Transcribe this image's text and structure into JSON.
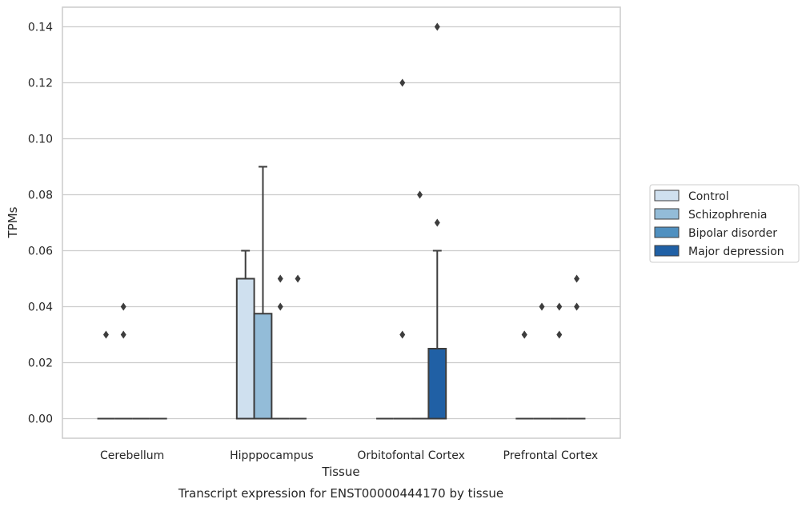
{
  "chart_data": {
    "type": "box",
    "xlabel": "Tissue",
    "ylabel": "TPMs",
    "caption": "Transcript expression for ENST00000444170 by tissue",
    "ylim": [
      -0.007,
      0.147
    ],
    "yticks": [
      "0.00",
      "0.02",
      "0.04",
      "0.06",
      "0.08",
      "0.10",
      "0.12",
      "0.14"
    ],
    "grid": "horizontal",
    "legend_position": "right",
    "categories": [
      "Cerebellum",
      "Hipppocampus",
      "Orbitofontal Cortex",
      "Prefrontal Cortex"
    ],
    "series": [
      {
        "name": "Control",
        "color": "#cfe0ef",
        "boxes": [
          {
            "q1": 0,
            "median": 0,
            "q3": 0,
            "whisker_low": 0,
            "whisker_high": 0,
            "outliers": [
              0.03
            ]
          },
          {
            "q1": 0,
            "median": 0,
            "q3": 0.05,
            "whisker_low": 0,
            "whisker_high": 0.06,
            "outliers": []
          },
          {
            "q1": 0,
            "median": 0,
            "q3": 0,
            "whisker_low": 0,
            "whisker_high": 0,
            "outliers": []
          },
          {
            "q1": 0,
            "median": 0,
            "q3": 0,
            "whisker_low": 0,
            "whisker_high": 0,
            "outliers": [
              0.03,
              0.03
            ]
          }
        ]
      },
      {
        "name": "Schizophrenia",
        "color": "#93bcd8",
        "boxes": [
          {
            "q1": 0,
            "median": 0,
            "q3": 0,
            "whisker_low": 0,
            "whisker_high": 0,
            "outliers": [
              0.03,
              0.04
            ]
          },
          {
            "q1": 0,
            "median": 0,
            "q3": 0.0375,
            "whisker_low": 0,
            "whisker_high": 0.09,
            "outliers": []
          },
          {
            "q1": 0,
            "median": 0,
            "q3": 0,
            "whisker_low": 0,
            "whisker_high": 0,
            "outliers": [
              0.03,
              0.12
            ]
          },
          {
            "q1": 0,
            "median": 0,
            "q3": 0,
            "whisker_low": 0,
            "whisker_high": 0,
            "outliers": [
              0.04
            ]
          }
        ]
      },
      {
        "name": "Bipolar disorder",
        "color": "#4f90c0",
        "boxes": [
          {
            "q1": 0,
            "median": 0,
            "q3": 0,
            "whisker_low": 0,
            "whisker_high": 0,
            "outliers": []
          },
          {
            "q1": 0,
            "median": 0,
            "q3": 0,
            "whisker_low": 0,
            "whisker_high": 0,
            "outliers": [
              0.04,
              0.05
            ]
          },
          {
            "q1": 0,
            "median": 0,
            "q3": 0,
            "whisker_low": 0,
            "whisker_high": 0,
            "outliers": [
              0.08
            ]
          },
          {
            "q1": 0,
            "median": 0,
            "q3": 0,
            "whisker_low": 0,
            "whisker_high": 0,
            "outliers": [
              0.03,
              0.04
            ]
          }
        ]
      },
      {
        "name": "Major depression",
        "color": "#2060a5",
        "boxes": [
          {
            "q1": 0,
            "median": 0,
            "q3": 0,
            "whisker_low": 0,
            "whisker_high": 0,
            "outliers": []
          },
          {
            "q1": 0,
            "median": 0,
            "q3": 0,
            "whisker_low": 0,
            "whisker_high": 0,
            "outliers": [
              0.05
            ]
          },
          {
            "q1": 0,
            "median": 0,
            "q3": 0.025,
            "whisker_low": 0,
            "whisker_high": 0.06,
            "outliers": [
              0.07,
              0.14
            ]
          },
          {
            "q1": 0,
            "median": 0,
            "q3": 0,
            "whisker_low": 0,
            "whisker_high": 0,
            "outliers": [
              0.04,
              0.05
            ]
          }
        ]
      }
    ]
  }
}
